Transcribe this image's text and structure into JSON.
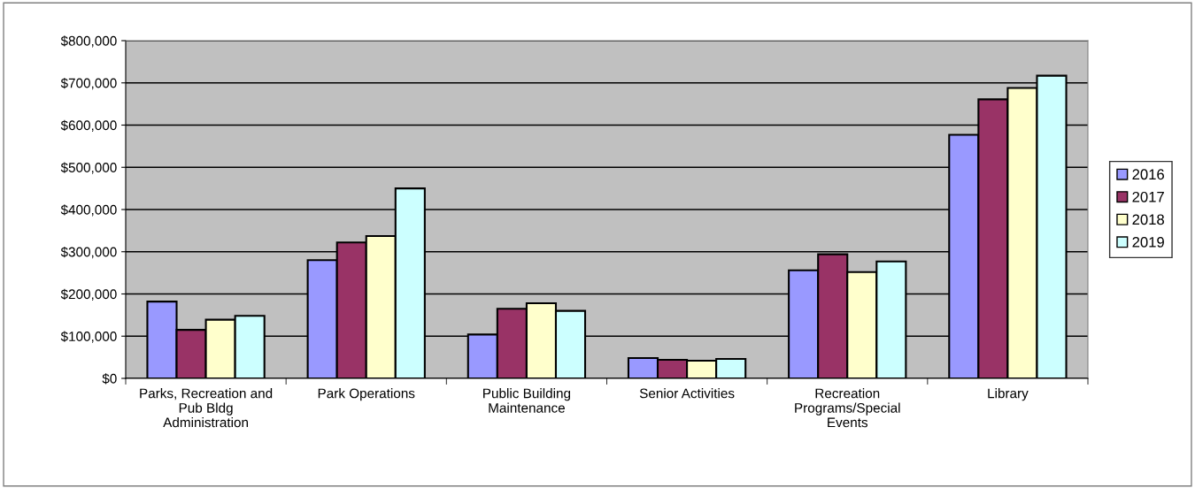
{
  "chart_data": {
    "type": "bar",
    "categories": [
      "Parks, Recreation and\nPub Bldg\nAdministration",
      "Park Operations",
      "Public Building\nMaintenance",
      "Senior Activities",
      "Recreation\nPrograms/Special\nEvents",
      "Library"
    ],
    "series": [
      {
        "name": "2016",
        "color": "#9999ff",
        "values": [
          182000,
          280000,
          104000,
          48000,
          256000,
          577000
        ]
      },
      {
        "name": "2017",
        "color": "#993366",
        "values": [
          115000,
          322000,
          165000,
          44000,
          294000,
          661000
        ]
      },
      {
        "name": "2018",
        "color": "#ffffcc",
        "values": [
          139000,
          337000,
          178000,
          42000,
          252000,
          688000
        ]
      },
      {
        "name": "2019",
        "color": "#ccffff",
        "values": [
          148000,
          450000,
          160000,
          46000,
          277000,
          717000
        ]
      }
    ],
    "ylim": [
      0,
      800000
    ],
    "yticks": [
      {
        "value": 0,
        "label": "$0"
      },
      {
        "value": 100000,
        "label": "$100,000"
      },
      {
        "value": 200000,
        "label": "$200,000"
      },
      {
        "value": 300000,
        "label": "$300,000"
      },
      {
        "value": 400000,
        "label": "$400,000"
      },
      {
        "value": 500000,
        "label": "$500,000"
      },
      {
        "value": 600000,
        "label": "$600,000"
      },
      {
        "value": 700000,
        "label": "$700,000"
      },
      {
        "value": 800000,
        "label": "$800,000"
      }
    ],
    "grid": "y",
    "legend": "right"
  }
}
